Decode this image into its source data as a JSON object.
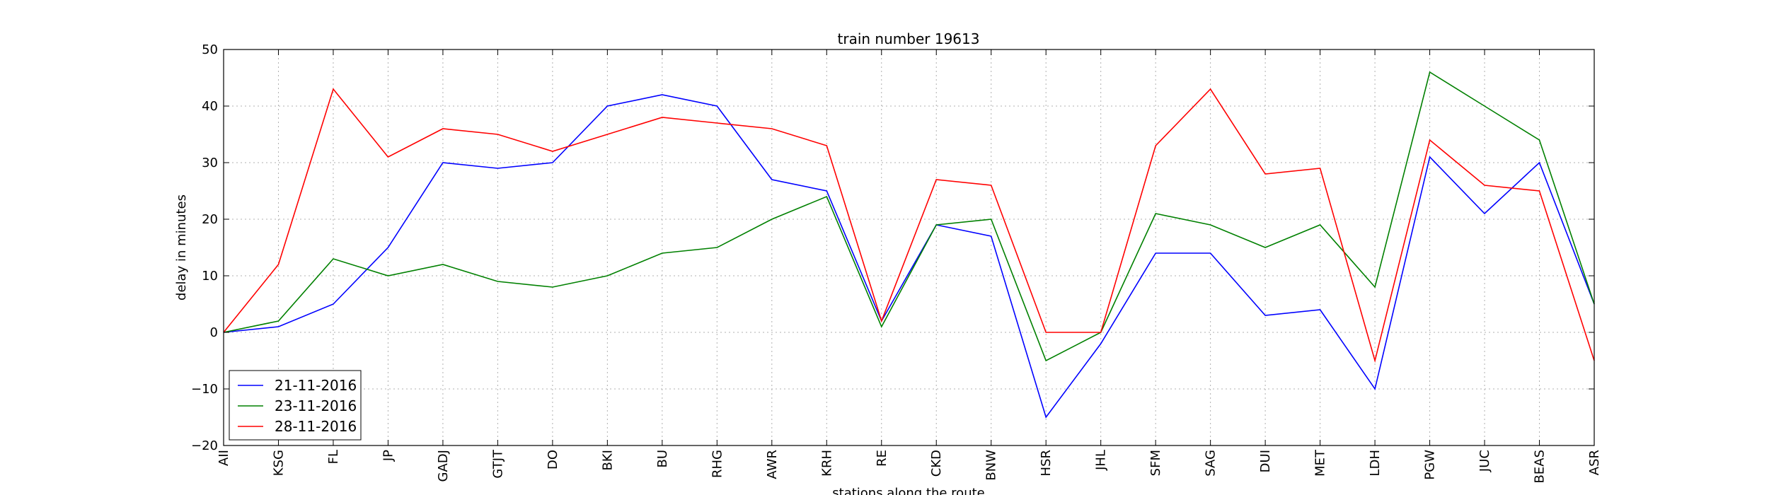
{
  "chart_data": {
    "type": "line",
    "title": "train number 19613",
    "xlabel": "stations along the route",
    "ylabel": "delay in minutes",
    "ylim": [
      -20,
      50
    ],
    "yticks": [
      -20,
      -10,
      0,
      10,
      20,
      30,
      40,
      50
    ],
    "ytick_labels": [
      "−20",
      "−10",
      "0",
      "10",
      "20",
      "30",
      "40",
      "50"
    ],
    "grid": true,
    "legend_position": "bottom-left",
    "categories": [
      "AII",
      "KSG",
      "FL",
      "JP",
      "GADJ",
      "GTJT",
      "DO",
      "BKI",
      "BU",
      "RHG",
      "AWR",
      "KRH",
      "RE",
      "CKD",
      "BNW",
      "HSR",
      "JHL",
      "SFM",
      "SAG",
      "DUI",
      "MET",
      "LDH",
      "PGW",
      "JUC",
      "BEAS",
      "ASR"
    ],
    "series": [
      {
        "name": "21-11-2016",
        "color": "#0000ff",
        "values": [
          0,
          1,
          5,
          15,
          30,
          29,
          30,
          40,
          42,
          40,
          27,
          25,
          2,
          19,
          17,
          -15,
          -2,
          14,
          14,
          3,
          4,
          -10,
          31,
          21,
          30,
          5
        ]
      },
      {
        "name": "23-11-2016",
        "color": "#008000",
        "values": [
          0,
          2,
          13,
          10,
          12,
          9,
          8,
          10,
          14,
          15,
          20,
          24,
          1,
          19,
          20,
          -5,
          0,
          21,
          19,
          15,
          19,
          8,
          46,
          40,
          34,
          5
        ]
      },
      {
        "name": "28-11-2016",
        "color": "#ff0000",
        "values": [
          0,
          12,
          43,
          31,
          36,
          35,
          32,
          35,
          38,
          37,
          36,
          33,
          2,
          27,
          26,
          0,
          0,
          33,
          43,
          28,
          29,
          -5,
          34,
          26,
          25,
          -5
        ]
      }
    ]
  }
}
